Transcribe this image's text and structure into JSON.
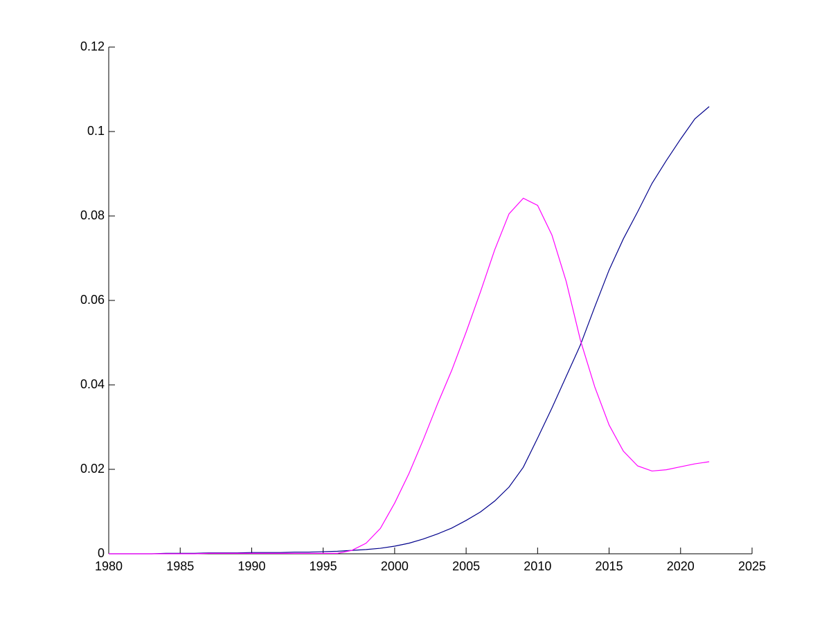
{
  "chart_data": {
    "type": "line",
    "x": [
      1980,
      1981,
      1982,
      1983,
      1984,
      1985,
      1986,
      1987,
      1988,
      1989,
      1990,
      1991,
      1992,
      1993,
      1994,
      1995,
      1996,
      1997,
      1998,
      1999,
      2000,
      2001,
      2002,
      2003,
      2004,
      2005,
      2006,
      2007,
      2008,
      2009,
      2010,
      2011,
      2012,
      2013,
      2014,
      2015,
      2016,
      2017,
      2018,
      2019,
      2020,
      2021,
      2022
    ],
    "series": [
      {
        "color": "#00008b",
        "values": [
          0,
          0,
          0,
          0,
          0.0001,
          0.0001,
          0.0001,
          0.0002,
          0.0002,
          0.0002,
          0.0003,
          0.0003,
          0.0003,
          0.0004,
          0.0004,
          0.0005,
          0.0006,
          0.0008,
          0.001,
          0.0013,
          0.0018,
          0.0025,
          0.0035,
          0.0047,
          0.0061,
          0.0079,
          0.0099,
          0.0125,
          0.0158,
          0.0205,
          0.0274,
          0.0345,
          0.042,
          0.0495,
          0.0585,
          0.0672,
          0.0746,
          0.081,
          0.0877,
          0.0931,
          0.0982,
          0.103,
          0.1059
        ]
      },
      {
        "color": "#ff00ff",
        "values": [
          0,
          0,
          0,
          0,
          0,
          0,
          0,
          0.0001,
          0.0001,
          0.0001,
          0.0001,
          0.0001,
          0.0001,
          0.0001,
          0.0001,
          0.0001,
          0.0001,
          0.0008,
          0.0025,
          0.006,
          0.012,
          0.019,
          0.027,
          0.0355,
          0.0435,
          0.0525,
          0.062,
          0.072,
          0.0805,
          0.0842,
          0.0825,
          0.0755,
          0.0645,
          0.0505,
          0.0395,
          0.0305,
          0.0243,
          0.0208,
          0.0196,
          0.0199,
          0.0206,
          0.0213,
          0.0218
        ]
      }
    ],
    "xlim": [
      1980,
      2025
    ],
    "xticks": [
      1980,
      1985,
      1990,
      1995,
      2000,
      2005,
      2010,
      2015,
      2020,
      2025
    ],
    "ylim": [
      0,
      0.12
    ],
    "yticks": [
      0,
      0.02,
      0.04,
      0.06,
      0.08,
      0.1,
      0.12
    ],
    "grid": false
  }
}
